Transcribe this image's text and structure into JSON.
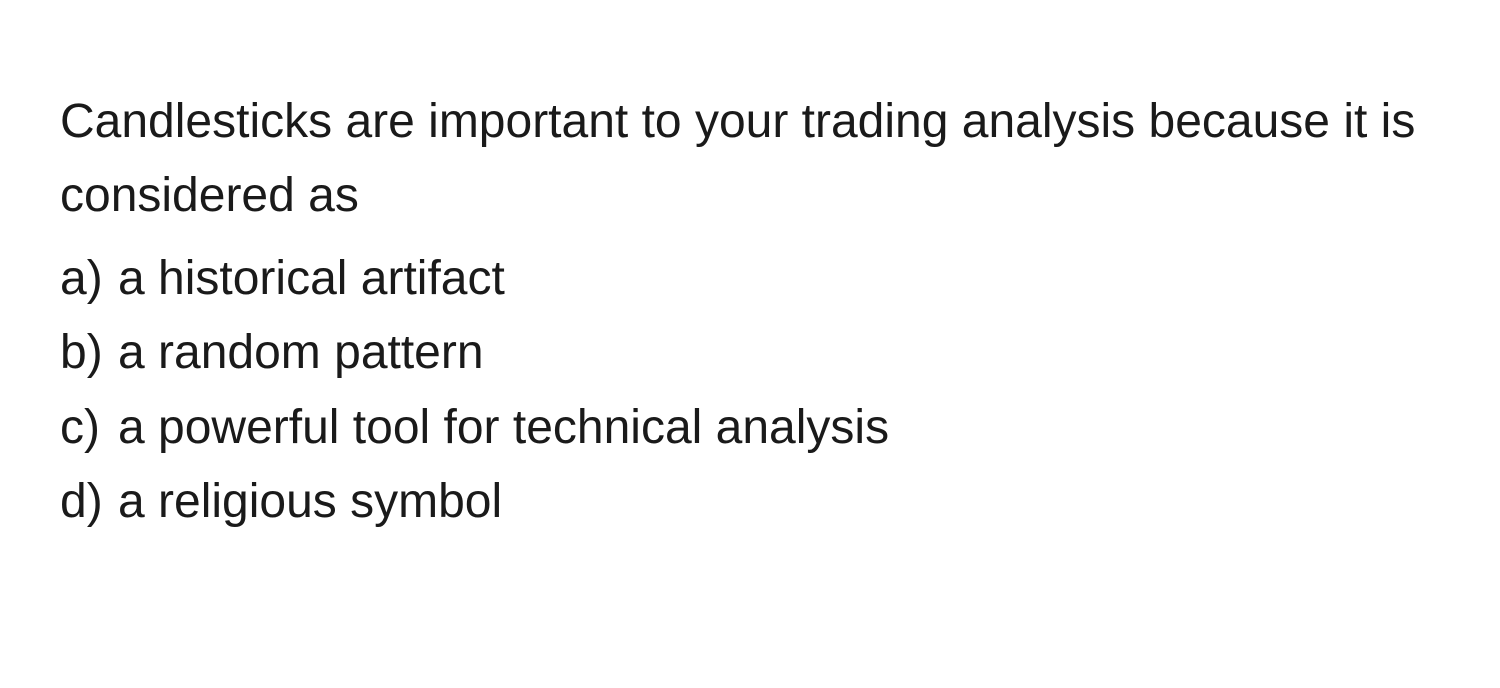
{
  "question": {
    "text": "Candlesticks are important to your trading analysis because it is considered as",
    "options": [
      {
        "letter": "a)",
        "label": "a historical artifact"
      },
      {
        "letter": "b)",
        "label": "a random pattern"
      },
      {
        "letter": "c)",
        "label": "a powerful tool for technical analysis"
      },
      {
        "letter": "d)",
        "label": "a religious symbol"
      }
    ]
  },
  "colors": {
    "background": "#ffffff",
    "text": "#1a1a1a"
  },
  "typography": {
    "fontsize": 48,
    "lineheight": 1.55,
    "fontweight": 400
  }
}
